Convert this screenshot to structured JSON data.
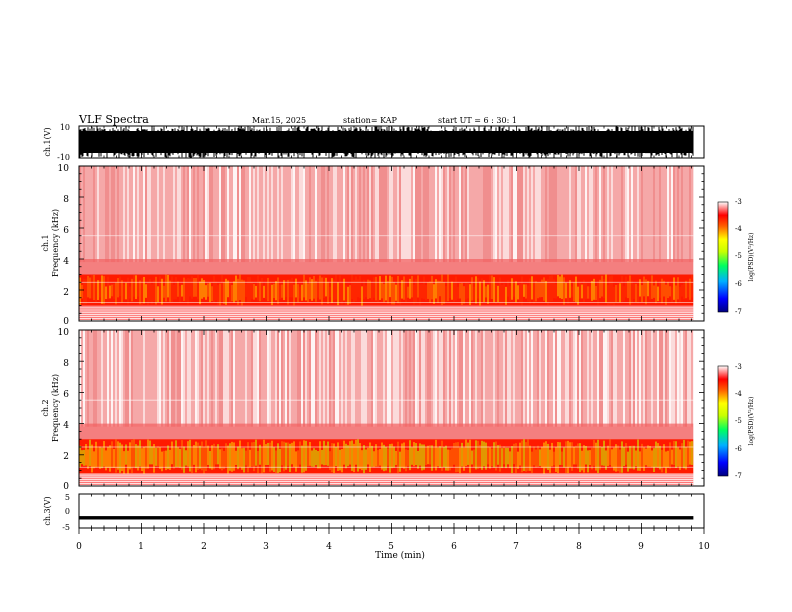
{
  "header": {
    "title": "VLF Spectra",
    "date": "Mar.15, 2025",
    "station": "station= KAP",
    "start": "start UT =  6 : 30: 1"
  },
  "chart_data": [
    {
      "type": "line",
      "name": "ch1-waveform",
      "ylabel": "ch.1(V)",
      "ylim": [
        -10,
        10
      ],
      "y_ticks": [
        -10,
        10
      ],
      "xlim": [
        0,
        10
      ],
      "description_values": {
        "x_end_min": 9.83,
        "amplitude_range_V": [
          -10,
          10
        ]
      }
    },
    {
      "type": "heatmap",
      "name": "ch1-spectrogram",
      "ylabel": "ch.1\nFrequency (kHz)",
      "ylim": [
        0,
        10
      ],
      "y_ticks": [
        0,
        2,
        4,
        6,
        8,
        10
      ],
      "xlim": [
        0,
        10
      ],
      "x_end_min": 9.83,
      "intense_band_kHz": [
        1.0,
        3.0
      ],
      "colorbar": {
        "label": "log(PSD)(V²/Hz)",
        "range": [
          -7,
          -3
        ],
        "ticks": [
          -7,
          -6,
          -5,
          -4,
          -3
        ]
      }
    },
    {
      "type": "heatmap",
      "name": "ch2-spectrogram",
      "ylabel": "ch.2\nFrequency (kHz)",
      "ylim": [
        0,
        10
      ],
      "y_ticks": [
        0,
        2,
        4,
        6,
        8,
        10
      ],
      "xlim": [
        0,
        10
      ],
      "x_end_min": 9.83,
      "intense_band_kHz": [
        0.8,
        3.0
      ],
      "colorbar": {
        "label": "log(PSD)(V²/Hz)",
        "range": [
          -7,
          -3
        ],
        "ticks": [
          -7,
          -6,
          -5,
          -4,
          -3
        ]
      }
    },
    {
      "type": "line",
      "name": "ch3-waveform",
      "ylabel": "ch.3(V)",
      "ylim": [
        -5,
        5
      ],
      "y_ticks": [
        -5,
        0,
        5
      ],
      "xlim": [
        0,
        10
      ],
      "x_end_min": 9.83,
      "amplitude_range_V": [
        -2.5,
        -1.5
      ]
    }
  ],
  "xaxis": {
    "label": "Time (min)",
    "ticks": [
      0,
      1,
      2,
      3,
      4,
      5,
      6,
      7,
      8,
      9,
      10
    ]
  },
  "colorbar_label": "log(PSD)(V²/Hz)",
  "ch1_ylabel": "ch.1(V)",
  "ch3_ylabel": "ch.3(V)",
  "spec1_ylabel_a": "ch.1",
  "spec1_ylabel_b": "Frequency (kHz)",
  "spec2_ylabel_a": "ch.2",
  "spec2_ylabel_b": "Frequency (kHz)",
  "tick_text": {
    "ch1_top": "10",
    "ch1_bottom": "-10",
    "ch3_top": "5",
    "ch3_mid": "0",
    "ch3_bottom": "-5",
    "f0": "0",
    "f2": "2",
    "f4": "4",
    "f6": "6",
    "f8": "8",
    "f10": "10",
    "cb_m3": "-3",
    "cb_m4": "-4",
    "cb_m5": "-5",
    "cb_m6": "-6",
    "cb_m7": "-7",
    "t0": "0",
    "t1": "1",
    "t2": "2",
    "t3": "3",
    "t4": "4",
    "t5": "5",
    "t6": "6",
    "t7": "7",
    "t8": "8",
    "t9": "9",
    "t10": "10"
  }
}
